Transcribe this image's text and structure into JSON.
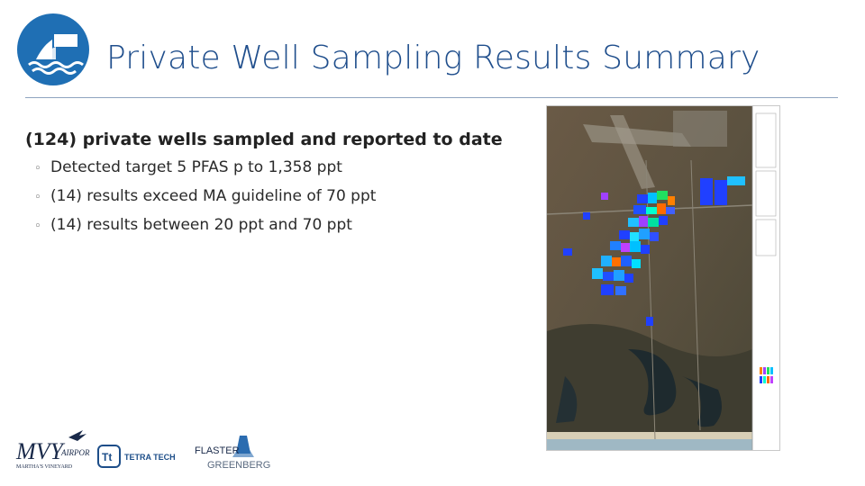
{
  "title": "Private Well Sampling Results Summary",
  "main_bullet": "(124) private wells sampled and reported to date",
  "sub_bullets": [
    "Detected target 5 PFAS p to 1,358 ppt",
    "(14) results exceed MA guideline of 70 ppt",
    "(14) results between 20 ppt and 70 ppt"
  ],
  "sub_bullet_glyph": "◦",
  "footer": {
    "mvy_logo_text": "MVY",
    "mvy_airport_text": "AIRPORT",
    "mvy_subtext": "MARTHA'S VINEYARD",
    "tetra_tech_text": "TETRA TECH",
    "tetra_tech_mark": "Tt",
    "flaster_text": "FLASTER",
    "greenberg_text": "GREENBERG"
  },
  "colors": {
    "title": "#1f4e8c",
    "rule": "#8ea4c0",
    "logo_circle": "#1f6fb4",
    "tetra_blue": "#1d4e89",
    "flaster_blue": "#2b6cb0"
  },
  "icons": {
    "header_logo": "sailboat-waves-icon",
    "footer_mvy": "mvy-airport-logo",
    "footer_tetra": "tetra-tech-logo",
    "footer_flaster": "flaster-greenberg-logo"
  }
}
